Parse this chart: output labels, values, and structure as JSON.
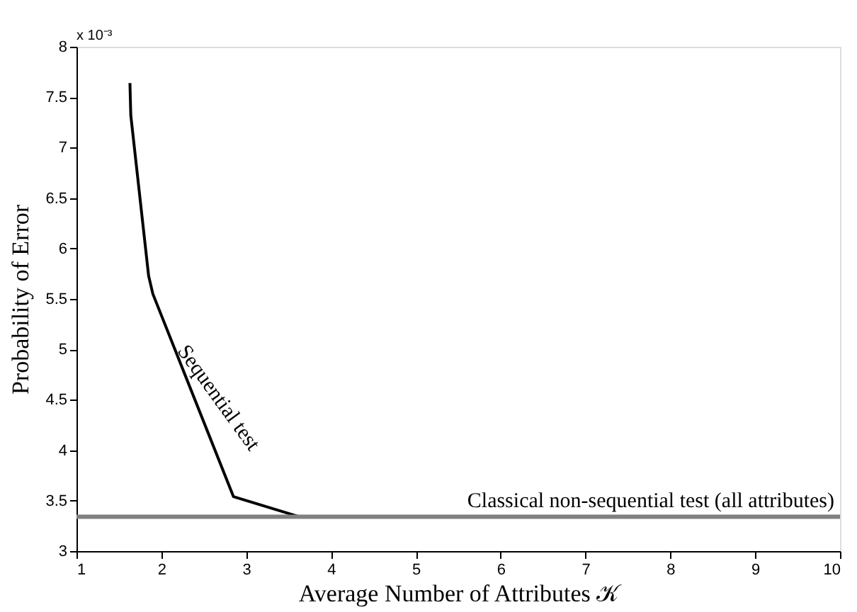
{
  "chart_data": {
    "type": "line",
    "xlabel": "Average Number of Attributes 𝒦",
    "ylabel": "Probability of Error",
    "annotations": [
      "x 10⁻³"
    ],
    "series": [
      {
        "name": "Sequential test",
        "color": "#000000",
        "x": [
          1.63,
          1.64,
          1.85,
          1.9,
          2.85,
          3.63
        ],
        "values": [
          7.64,
          7.32,
          5.73,
          5.55,
          3.54,
          3.34
        ]
      }
    ],
    "ref_lines": [
      {
        "axis": "y",
        "value": 3.34,
        "label": "Classical non-sequential test (all attributes)",
        "color": "#808080"
      }
    ],
    "xlim": [
      1,
      10
    ],
    "xticks": [
      1,
      2,
      3,
      4,
      5,
      6,
      7,
      8,
      9,
      10
    ],
    "ylim": [
      3,
      8
    ],
    "yticks": [
      3,
      3.5,
      4,
      4.5,
      5,
      5.5,
      6,
      6.5,
      7,
      7.5,
      8
    ],
    "grid": false,
    "line_style": "solid",
    "marker": "none"
  }
}
